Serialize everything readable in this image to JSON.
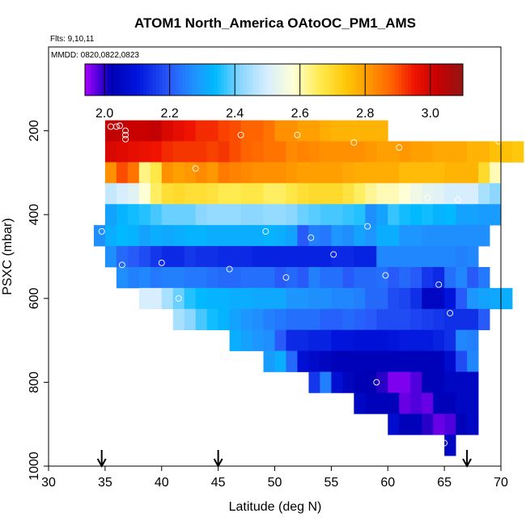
{
  "chart_data": {
    "type": "heatmap",
    "title": "ATOM1 North_America OAtoOC_PM1_AMS",
    "flights_label": "Flts: 9,10,11",
    "dates_label": "MMDD: 0820,0822,0823",
    "xlabel": "Latitude (deg N)",
    "ylabel": "PSXC (mbar)",
    "xlim": [
      30,
      70
    ],
    "ylim": [
      1000,
      0
    ],
    "x_ticks": [
      "30",
      "35",
      "40",
      "45",
      "50",
      "55",
      "60",
      "65",
      "70"
    ],
    "y_ticks": [
      "1000",
      "800",
      "600",
      "400",
      "200"
    ],
    "colorbar": {
      "range": [
        1.94,
        3.1
      ],
      "tick_labels": [
        "2.0",
        "2.2",
        "2.4",
        "2.6",
        "2.8",
        "3.0"
      ],
      "tick_values": [
        2.0,
        2.2,
        2.4,
        2.6,
        2.8,
        3.0
      ]
    },
    "cell_width_deg": 1,
    "cell_height_mbar": 50,
    "rows": [
      {
        "pressure": 200,
        "x_start": 35,
        "values": [
          3.03,
          3.03,
          3.02,
          3.02,
          3.03,
          2.99,
          2.97,
          2.95,
          2.93,
          2.93,
          2.91,
          2.9,
          2.88,
          2.88,
          2.86,
          2.82,
          2.82,
          2.8,
          2.8,
          2.78,
          2.77,
          2.77,
          2.77,
          2.77,
          2.77
        ]
      },
      {
        "pressure": 250,
        "x_start": 35,
        "values": [
          2.99,
          2.98,
          2.97,
          2.96,
          2.95,
          2.93,
          2.92,
          2.92,
          2.92,
          2.91,
          2.92,
          2.9,
          2.88,
          2.87,
          2.86,
          2.86,
          2.83,
          2.84,
          2.83,
          2.82,
          2.82,
          2.82,
          2.82,
          2.81,
          2.8,
          2.8,
          2.81,
          2.8,
          2.8,
          2.79,
          2.79,
          2.79,
          2.77,
          2.77,
          2.75,
          2.75,
          2.74
        ]
      },
      {
        "pressure": 300,
        "x_start": 35,
        "values": [
          2.82,
          2.9,
          2.86,
          2.63,
          2.67,
          2.82,
          2.8,
          2.81,
          2.83,
          2.81,
          2.85,
          2.84,
          2.83,
          2.82,
          2.82,
          2.82,
          2.81,
          2.8,
          2.8,
          2.8,
          2.8,
          2.79,
          2.78,
          2.78,
          2.78,
          2.78,
          2.76,
          2.76,
          2.76,
          2.76,
          2.77,
          2.77,
          2.77,
          2.7,
          2.6
        ]
      },
      {
        "pressure": 350,
        "x_start": 35,
        "values": [
          2.48,
          2.5,
          2.52,
          2.58,
          2.65,
          2.69,
          2.7,
          2.69,
          2.69,
          2.68,
          2.66,
          2.66,
          2.67,
          2.67,
          2.65,
          2.65,
          2.67,
          2.69,
          2.7,
          2.7,
          2.7,
          2.68,
          2.65,
          2.62,
          2.6,
          2.6,
          2.58,
          2.55,
          2.53,
          2.52,
          2.5,
          2.5,
          2.5,
          2.45,
          2.42
        ]
      },
      {
        "pressure": 400,
        "x_start": 35,
        "values": [
          2.3,
          2.33,
          2.35,
          2.36,
          2.38,
          2.4,
          2.4,
          2.4,
          2.42,
          2.43,
          2.43,
          2.43,
          2.42,
          2.42,
          2.43,
          2.43,
          2.42,
          2.4,
          2.39,
          2.38,
          2.38,
          2.37,
          2.36,
          2.27,
          2.3,
          2.37,
          2.35,
          2.34,
          2.35,
          2.33,
          2.34,
          2.3,
          2.3,
          2.29,
          2.29
        ]
      },
      {
        "pressure": 450,
        "x_start": 34,
        "values": [
          2.27,
          2.32,
          2.34,
          2.33,
          2.3,
          2.32,
          2.31,
          2.32,
          2.33,
          2.33,
          2.32,
          2.32,
          2.32,
          2.32,
          2.32,
          2.33,
          2.32,
          2.3,
          2.2,
          2.25,
          2.24,
          2.28,
          2.27,
          2.3,
          2.28,
          2.32,
          2.32,
          2.28,
          2.28,
          2.27,
          2.27,
          2.27,
          2.27,
          2.27,
          2.27
        ]
      },
      {
        "pressure": 500,
        "x_start": 35,
        "values": [
          2.27,
          2.22,
          2.2,
          2.18,
          2.15,
          2.13,
          2.13,
          2.15,
          2.14,
          2.14,
          2.13,
          2.13,
          2.13,
          2.12,
          2.12,
          2.12,
          2.12,
          2.12,
          2.12,
          2.12,
          2.13,
          2.13,
          2.12,
          2.12,
          2.26,
          2.26,
          2.26,
          2.26,
          2.26,
          2.26,
          2.26,
          2.25,
          2.26
        ]
      },
      {
        "pressure": 550,
        "x_start": 36,
        "values": [
          2.27,
          2.25,
          2.26,
          2.24,
          2.25,
          2.25,
          2.24,
          2.24,
          2.23,
          2.22,
          2.22,
          2.23,
          2.23,
          2.23,
          2.2,
          2.22,
          2.2,
          2.25,
          2.23,
          2.23,
          2.2,
          2.22,
          2.22,
          2.23,
          2.2,
          2.22,
          2.2,
          2.15,
          2.13,
          2.23,
          2.26,
          2.2,
          2.24
        ]
      },
      {
        "pressure": 600,
        "x_start": 38,
        "values": [
          2.5,
          2.5,
          2.45,
          2.4,
          2.36,
          2.34,
          2.33,
          2.33,
          2.32,
          2.32,
          2.31,
          2.31,
          2.31,
          2.28,
          2.28,
          2.27,
          2.27,
          2.26,
          2.26,
          2.25,
          2.22,
          2.22,
          2.18,
          2.17,
          2.14,
          2.05,
          2.05,
          2.1,
          2.2,
          2.28,
          2.3,
          2.31,
          2.32
        ]
      },
      {
        "pressure": 650,
        "x_start": 41,
        "values": [
          2.45,
          2.42,
          2.38,
          2.35,
          2.33,
          2.3,
          2.28,
          2.27,
          2.25,
          2.24,
          2.23,
          2.23,
          2.23,
          2.21,
          2.21,
          2.22,
          2.21,
          2.2,
          2.18,
          2.18,
          2.18,
          2.17,
          2.16,
          2.15,
          2.14,
          2.14,
          2.14,
          2.2
        ]
      },
      {
        "pressure": 700,
        "x_start": 46,
        "values": [
          2.32,
          2.3,
          2.28,
          2.27,
          2.2,
          2.13,
          2.13,
          2.12,
          2.12,
          2.1,
          2.1,
          2.09,
          2.09,
          2.09,
          2.1,
          2.11,
          2.11,
          2.11,
          2.12,
          2.14,
          2.26,
          2.25
        ]
      },
      {
        "pressure": 750,
        "x_start": 49,
        "values": [
          2.29,
          2.32,
          2.22,
          2.08,
          2.06,
          2.04,
          2.03,
          2.03,
          2.03,
          2.03,
          2.03,
          2.03,
          2.03,
          2.03,
          2.03,
          2.03,
          2.07,
          2.18,
          2.26
        ]
      },
      {
        "pressure": 800,
        "x_start": 53,
        "values": [
          2.15,
          2.25,
          2.08,
          2.04,
          2.02,
          2.02,
          2.0,
          1.96,
          1.96,
          1.98,
          2.03,
          2.03,
          2.05,
          2.05,
          2.05
        ]
      },
      {
        "pressure": 850,
        "x_start": 57,
        "values": [
          2.05,
          2.03,
          2.03,
          2.03,
          1.97,
          1.98,
          1.97,
          2.03,
          2.03,
          2.05,
          2.05
        ]
      },
      {
        "pressure": 900,
        "x_start": 60,
        "values": [
          2.07,
          2.03,
          2.03,
          2.0,
          1.97,
          1.98,
          2.03,
          2.05
        ]
      },
      {
        "pressure": 950,
        "x_start": 65,
        "values": [
          2.05
        ]
      }
    ],
    "observations": [
      [
        35.5,
        190
      ],
      [
        36.0,
        190
      ],
      [
        36.3,
        188
      ],
      [
        36.8,
        200
      ],
      [
        36.8,
        210
      ],
      [
        36.8,
        220
      ],
      [
        34.7,
        230
      ],
      [
        47.0,
        210
      ],
      [
        52.0,
        210
      ],
      [
        57.0,
        228
      ],
      [
        61.0,
        240
      ],
      [
        69.8,
        225
      ],
      [
        43.0,
        290
      ],
      [
        63.5,
        360
      ],
      [
        66.2,
        365
      ],
      [
        34.7,
        440
      ],
      [
        49.2,
        440
      ],
      [
        53.2,
        455
      ],
      [
        58.2,
        428
      ],
      [
        55.2,
        495
      ],
      [
        40.0,
        515
      ],
      [
        36.5,
        520
      ],
      [
        46.0,
        530
      ],
      [
        51.0,
        550
      ],
      [
        59.8,
        545
      ],
      [
        64.5,
        567
      ],
      [
        41.5,
        600
      ],
      [
        65.5,
        635
      ],
      [
        59.0,
        800
      ],
      [
        65.0,
        945
      ]
    ],
    "arrows_lat": [
      34.7,
      45.0,
      67.0
    ]
  }
}
